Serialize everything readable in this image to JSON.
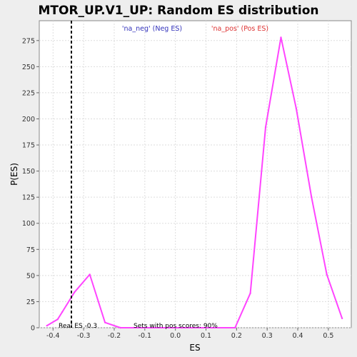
{
  "chart_data": {
    "type": "line",
    "title": "MTOR_UP.V1_UP: Random ES distribution",
    "xlabel": "ES",
    "ylabel": "P(ES)",
    "xlim": [
      -0.445,
      0.575
    ],
    "ylim": [
      0,
      294
    ],
    "x_ticks": [
      "-0.4",
      "-0.3",
      "-0.2",
      "-0.1",
      "0.0",
      "0.1",
      "0.2",
      "0.3",
      "0.4",
      "0.5"
    ],
    "y_ticks": [
      "0",
      "25",
      "50",
      "75",
      "100",
      "125",
      "150",
      "175",
      "200",
      "225",
      "250",
      "275"
    ],
    "grid": true,
    "series": [
      {
        "color": "#ff44ff",
        "x": [
          -0.42,
          -0.385,
          -0.37,
          -0.33,
          -0.28,
          -0.23,
          -0.18,
          -0.08,
          0.02,
          0.12,
          0.195,
          0.245,
          0.295,
          0.345,
          0.395,
          0.445,
          0.495,
          0.545
        ],
        "y": [
          2,
          8,
          15,
          34,
          51,
          5,
          0,
          0,
          0,
          0,
          0,
          33,
          192,
          278,
          210,
          125,
          51,
          9
        ]
      }
    ],
    "reference_line": {
      "x": -0.34,
      "style": "dashed",
      "color": "#000000"
    },
    "legend": [
      {
        "label": "'na_neg' (Neg ES)",
        "color": "#3333bb"
      },
      {
        "label": "'na_pos' (Pos ES)",
        "color": "#dd3333"
      }
    ],
    "annotations": {
      "real_es": "Real ES -0.3",
      "sets_pos": "Sets with pos scores: 90%"
    }
  }
}
